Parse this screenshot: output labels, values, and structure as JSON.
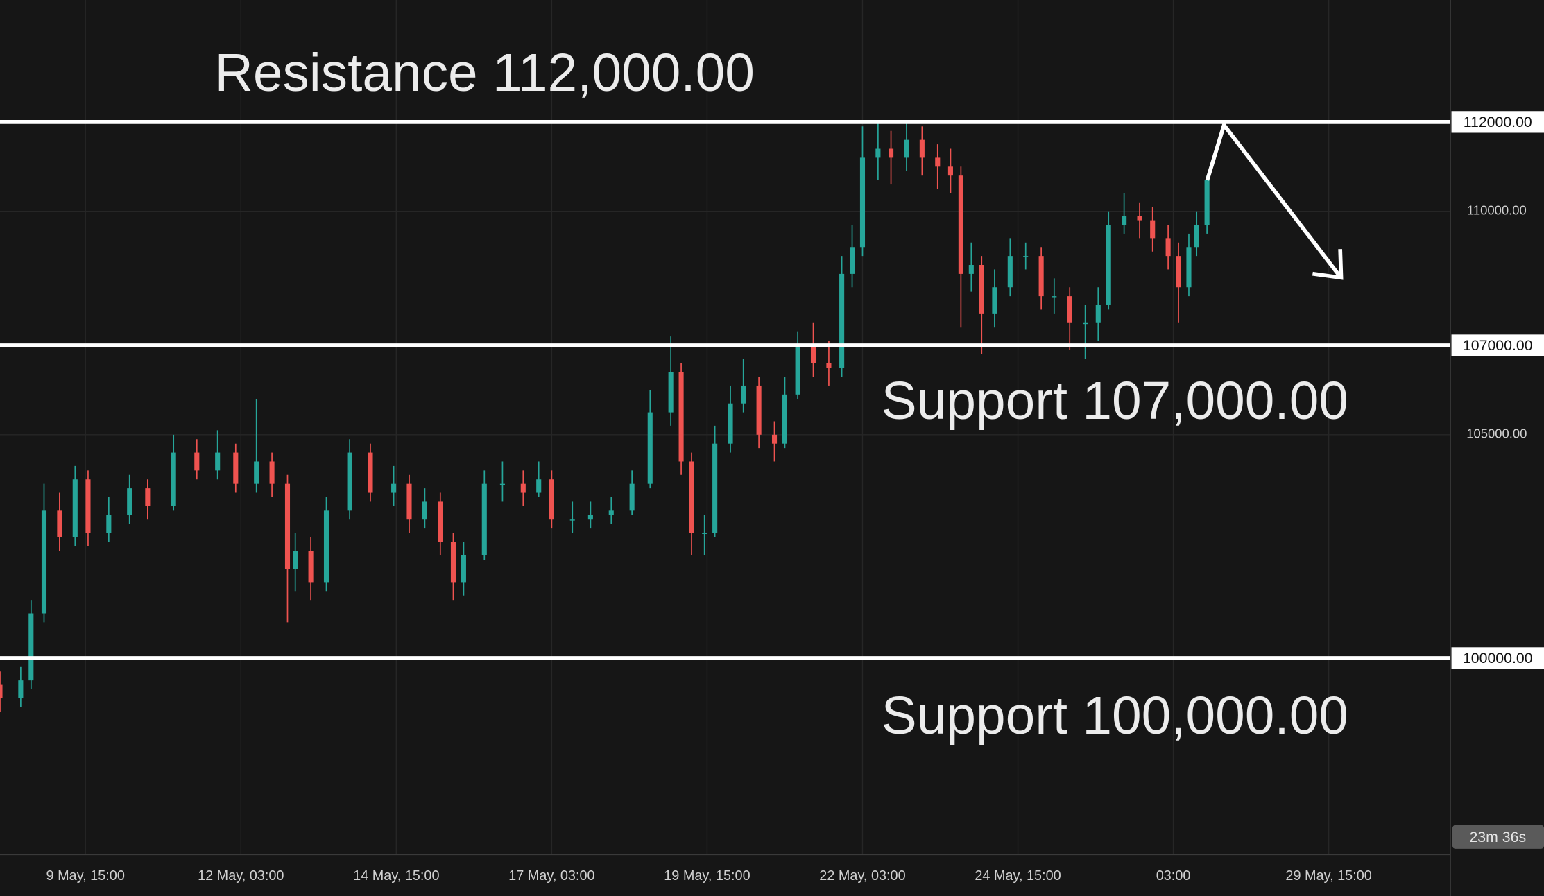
{
  "chart_data": {
    "type": "candlestick",
    "annotations": [
      "Resistance 112,000.00",
      "Support 107,000.00",
      "Support 100,000.00"
    ],
    "up_color": "#26a69a",
    "down_color": "#ef5350",
    "grid": true,
    "xlim": [
      -33,
      527
    ],
    "xticks": [
      {
        "value": 0,
        "label": "9 May, 15:00"
      },
      {
        "value": 60,
        "label": "12 May, 03:00"
      },
      {
        "value": 120,
        "label": "14 May, 15:00"
      },
      {
        "value": 180,
        "label": "17 May, 03:00"
      },
      {
        "value": 240,
        "label": "19 May, 15:00"
      },
      {
        "value": 300,
        "label": "22 May, 03:00"
      },
      {
        "value": 360,
        "label": "24 May, 15:00"
      },
      {
        "value": 420,
        "label": "03:00"
      },
      {
        "value": 480,
        "label": "29 May, 15:00"
      }
    ],
    "ylim": [
      95600,
      114730
    ],
    "yticks": [
      {
        "value": 105000,
        "label": "105000.00"
      },
      {
        "value": 110000,
        "label": "110000.00"
      }
    ],
    "levels": [
      {
        "value": 112000,
        "label": "112000.00"
      },
      {
        "value": 107000,
        "label": "107000.00"
      },
      {
        "value": 100000,
        "label": "100000.00"
      }
    ],
    "countdown": "23m 36s",
    "x": [
      -33,
      -25,
      -21,
      -16,
      -10,
      -4,
      1,
      9,
      17,
      24,
      34,
      43,
      51,
      58,
      66,
      72,
      78,
      81,
      87,
      93,
      102,
      110,
      119,
      125,
      131,
      137,
      142,
      146,
      154,
      161,
      169,
      175,
      180,
      188,
      195,
      203,
      211,
      218,
      226,
      230,
      234,
      239,
      243,
      249,
      254,
      260,
      266,
      270,
      275,
      281,
      287,
      292,
      296,
      300,
      306,
      311,
      317,
      323,
      329,
      334,
      338,
      342,
      346,
      351,
      357,
      363,
      369,
      374,
      380,
      386,
      391,
      395,
      401,
      407,
      412,
      418,
      422,
      426,
      429,
      433
    ],
    "open": [
      99400,
      99100,
      99500,
      101000,
      103300,
      102700,
      104000,
      102800,
      103200,
      103800,
      103400,
      104600,
      104200,
      104600,
      103900,
      104400,
      103900,
      102000,
      102400,
      101700,
      103300,
      104600,
      103700,
      103900,
      103100,
      103500,
      102600,
      101700,
      102300,
      103900,
      103900,
      103700,
      104000,
      103100,
      103100,
      103200,
      103300,
      103900,
      105500,
      106400,
      104400,
      102800,
      102800,
      104800,
      105700,
      106100,
      105000,
      104800,
      105900,
      107000,
      106600,
      106500,
      108600,
      109200,
      111200,
      111400,
      111200,
      111600,
      111200,
      111000,
      110800,
      108600,
      108800,
      107700,
      108300,
      109000,
      109000,
      108100,
      108100,
      107500,
      107500,
      107900,
      109700,
      109900,
      109800,
      109400,
      109000,
      108300,
      109200,
      109700
    ],
    "high": [
      99700,
      99800,
      101300,
      103900,
      103700,
      104300,
      104200,
      103600,
      104100,
      104000,
      105000,
      104900,
      105100,
      104800,
      105800,
      104600,
      104100,
      102800,
      102700,
      103600,
      104900,
      104800,
      104300,
      104100,
      103800,
      103700,
      102800,
      102600,
      104200,
      104400,
      104200,
      104400,
      104200,
      103500,
      103500,
      103600,
      104200,
      106000,
      107200,
      106600,
      104600,
      103200,
      105200,
      106100,
      106700,
      106300,
      105300,
      106300,
      107300,
      107500,
      107100,
      109000,
      109700,
      111900,
      112000,
      111800,
      112000,
      111900,
      111500,
      111400,
      111000,
      109300,
      109000,
      108700,
      109400,
      109300,
      109200,
      108500,
      108300,
      107900,
      108300,
      110000,
      110400,
      110200,
      110100,
      109700,
      109300,
      109500,
      110000,
      110800
    ],
    "low": [
      98800,
      98900,
      99300,
      100800,
      102400,
      102500,
      102500,
      102600,
      103000,
      103100,
      103300,
      104000,
      104000,
      103700,
      103700,
      103600,
      100800,
      101500,
      101300,
      101500,
      103100,
      103500,
      103400,
      102800,
      102900,
      102300,
      101300,
      101400,
      102200,
      103500,
      103400,
      103600,
      102900,
      102800,
      102900,
      103000,
      103200,
      103800,
      105200,
      104100,
      102300,
      102300,
      102700,
      104600,
      105500,
      104700,
      104400,
      104700,
      105800,
      106300,
      106100,
      106300,
      108300,
      109000,
      110700,
      110600,
      110900,
      110800,
      110500,
      110400,
      107400,
      108200,
      106800,
      107400,
      108100,
      108700,
      107800,
      107700,
      106900,
      106700,
      107100,
      107800,
      109500,
      109400,
      109100,
      108700,
      107500,
      108100,
      109000,
      109500
    ],
    "close": [
      99100,
      99500,
      101000,
      103300,
      102700,
      104000,
      102800,
      103200,
      103800,
      103400,
      104600,
      104200,
      104600,
      103900,
      104400,
      103900,
      102000,
      102400,
      101700,
      103300,
      104600,
      103700,
      103900,
      103100,
      103500,
      102600,
      101700,
      102300,
      103900,
      103900,
      103700,
      104000,
      103100,
      103100,
      103200,
      103300,
      103900,
      105500,
      106400,
      104400,
      102800,
      102800,
      104800,
      105700,
      106100,
      105000,
      104800,
      105900,
      107000,
      106600,
      106500,
      108600,
      109200,
      111200,
      111400,
      111200,
      111600,
      111200,
      111000,
      110800,
      108600,
      108800,
      107700,
      108300,
      109000,
      109000,
      108100,
      108100,
      107500,
      107500,
      107900,
      109700,
      109900,
      109800,
      109400,
      109000,
      108300,
      109200,
      109700,
      110700
    ]
  }
}
